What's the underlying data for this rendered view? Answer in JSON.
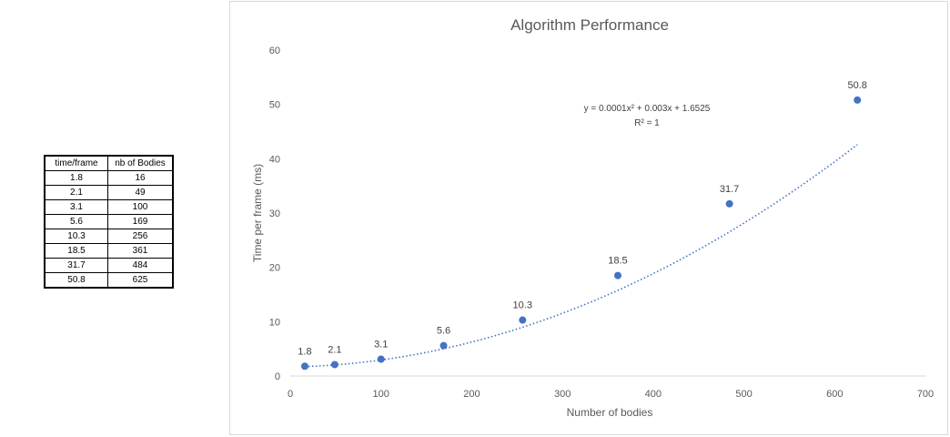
{
  "table": {
    "headers": [
      "time/frame",
      "nb of Bodies"
    ],
    "rows": [
      [
        "1.8",
        "16"
      ],
      [
        "2.1",
        "49"
      ],
      [
        "3.1",
        "100"
      ],
      [
        "5.6",
        "169"
      ],
      [
        "10.3",
        "256"
      ],
      [
        "18.5",
        "361"
      ],
      [
        "31.7",
        "484"
      ],
      [
        "50.8",
        "625"
      ]
    ]
  },
  "chart_data": {
    "type": "scatter",
    "title": "Algorithm Performance",
    "xlabel": "Number of bodies",
    "ylabel": "Time per frame (ms)",
    "xlim": [
      0,
      700
    ],
    "ylim": [
      0,
      60
    ],
    "xticks": [
      0,
      100,
      200,
      300,
      400,
      500,
      600,
      700
    ],
    "yticks": [
      0,
      10,
      20,
      30,
      40,
      50,
      60
    ],
    "grid": false,
    "series": [
      {
        "x": [
          16,
          49,
          100,
          169,
          256,
          361,
          484,
          625
        ],
        "y": [
          1.8,
          2.1,
          3.1,
          5.6,
          10.3,
          18.5,
          31.7,
          50.8
        ],
        "labels": [
          "1.8",
          "2.1",
          "3.1",
          "5.6",
          "10.3",
          "18.5",
          "31.7",
          "50.8"
        ],
        "color": "#4472c4"
      }
    ],
    "trendline": {
      "type": "polynomial",
      "order": 2,
      "coefficients": [
        0.0001,
        0.003,
        1.6525
      ],
      "equation": "y = 0.0001x² + 0.003x + 1.6525",
      "r_squared": "R² = 1",
      "color": "#4472c4",
      "style": "dotted"
    }
  }
}
